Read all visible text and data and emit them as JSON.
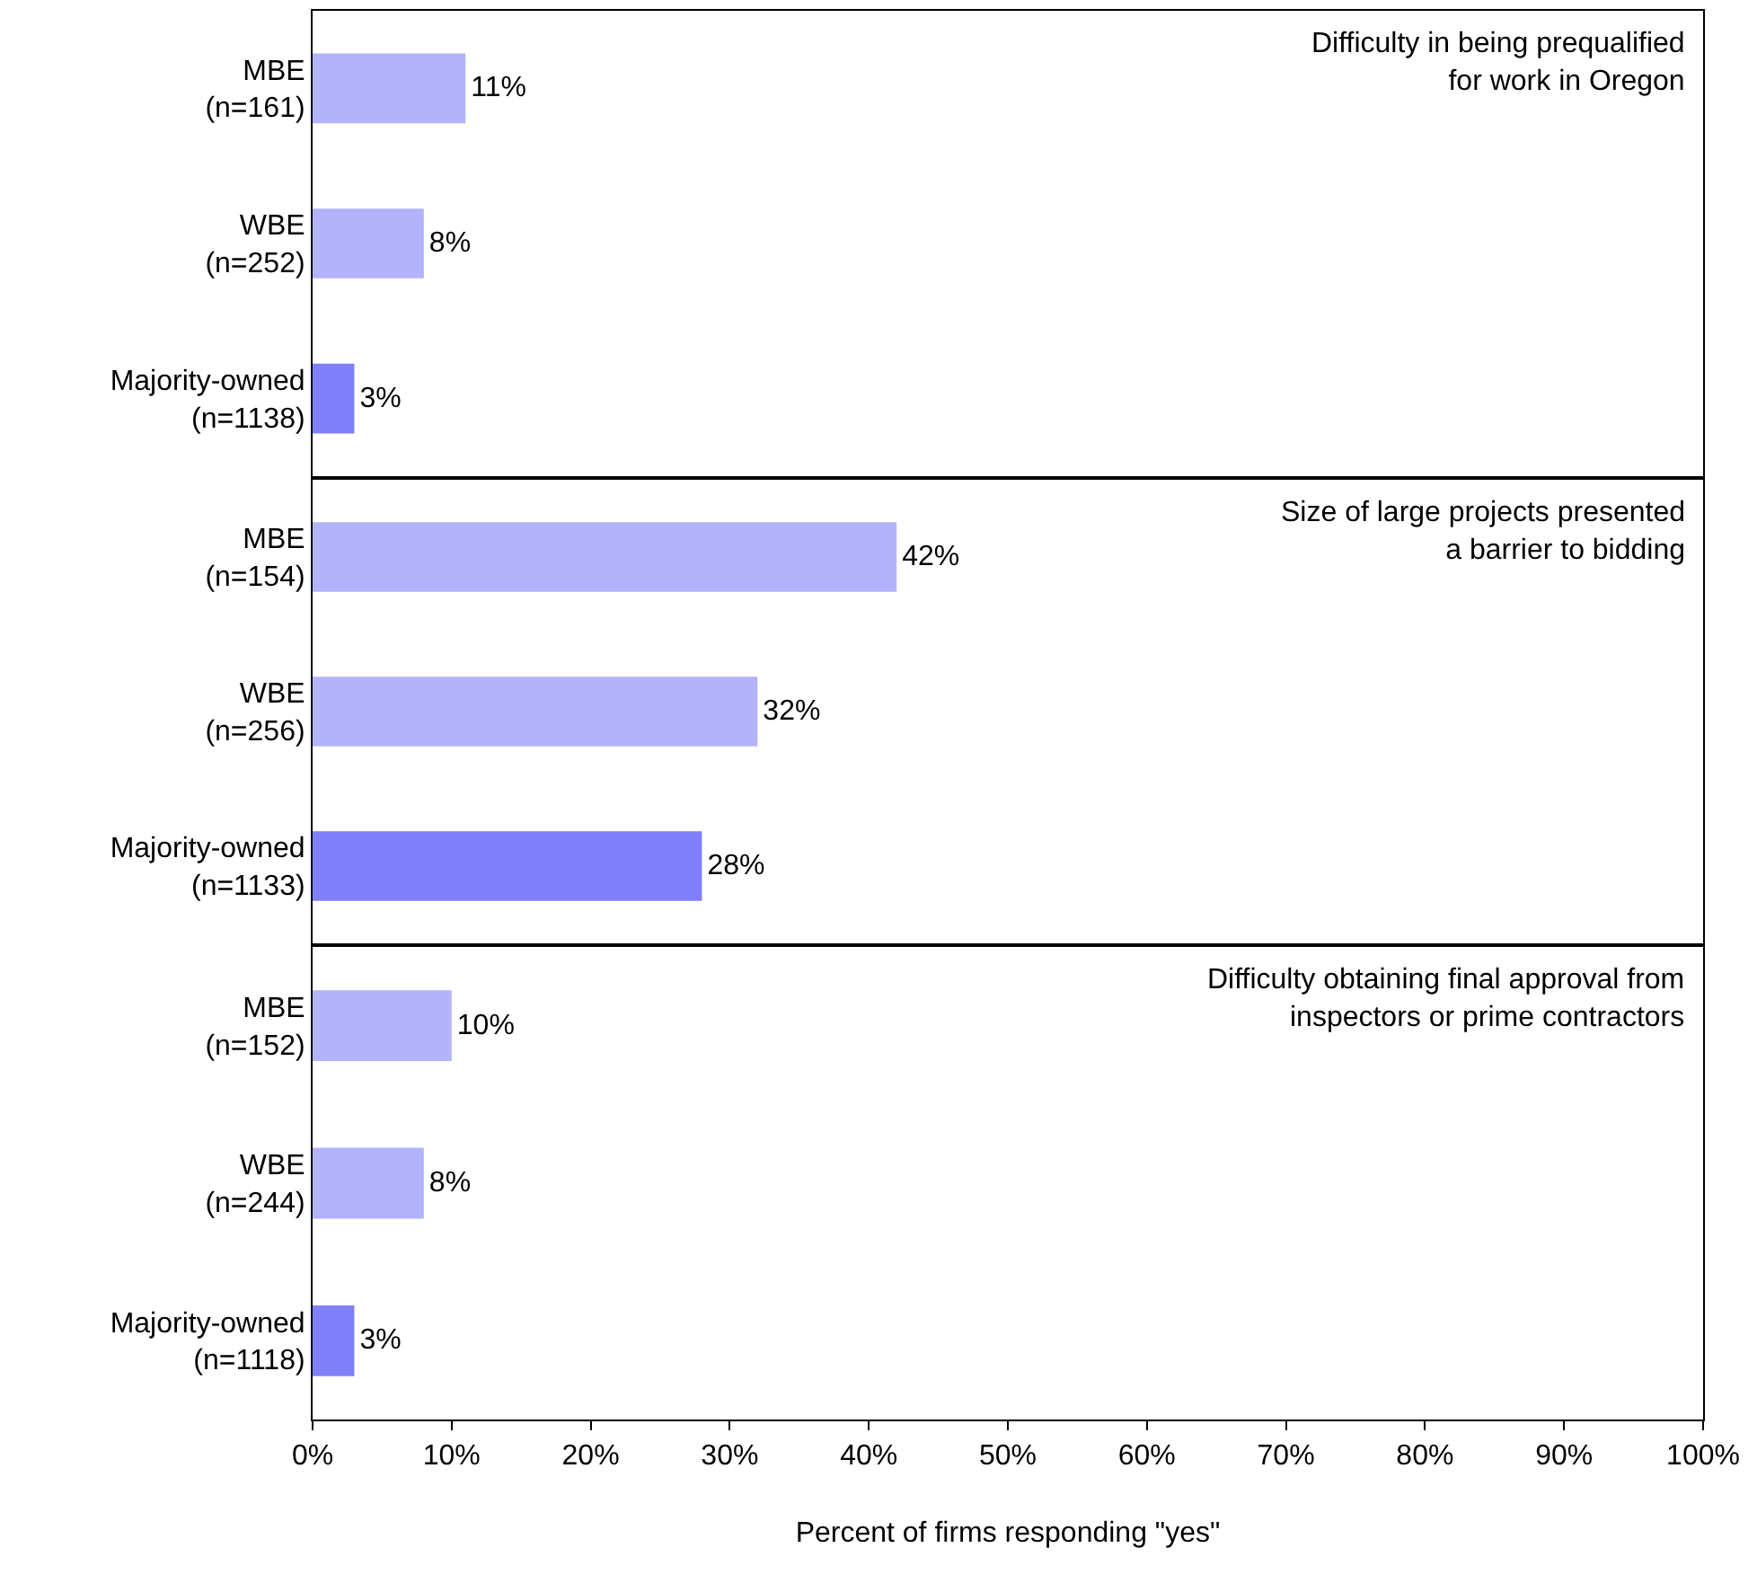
{
  "chart_data": [
    {
      "type": "bar",
      "orientation": "horizontal",
      "title": "Difficulty in being prequalified\nfor work in Oregon",
      "categories": [
        "MBE\n(n=161)",
        "WBE\n(n=252)",
        "Majority-owned\n(n=1138)"
      ],
      "values": [
        11,
        8,
        3
      ],
      "value_labels": [
        "11%",
        "8%",
        "3%"
      ],
      "colors": [
        "#b3b3fb",
        "#b3b3fb",
        "#8080fa"
      ],
      "xlim": [
        0,
        100
      ],
      "tick_labels": "y",
      "grid": false
    },
    {
      "type": "bar",
      "orientation": "horizontal",
      "title": "Size of large projects presented\na barrier to bidding",
      "categories": [
        "MBE\n(n=154)",
        "WBE\n(n=256)",
        "Majority-owned\n(n=1133)"
      ],
      "values": [
        42,
        32,
        28
      ],
      "value_labels": [
        "42%",
        "32%",
        "28%"
      ],
      "colors": [
        "#b3b3fb",
        "#b3b3fb",
        "#8080fa"
      ],
      "xlim": [
        0,
        100
      ],
      "tick_labels": "y",
      "grid": false
    },
    {
      "type": "bar",
      "orientation": "horizontal",
      "title": "Difficulty obtaining final approval from\ninspectors or prime contractors",
      "xlabel": "Percent of firms responding \"yes\"",
      "categories": [
        "MBE\n(n=152)",
        "WBE\n(n=244)",
        "Majority-owned\n(n=1118)"
      ],
      "values": [
        10,
        8,
        3
      ],
      "value_labels": [
        "10%",
        "8%",
        "3%"
      ],
      "colors": [
        "#b3b3fb",
        "#b3b3fb",
        "#8080fa"
      ],
      "xlim": [
        0,
        100
      ],
      "xticks": [
        {
          "value": 0,
          "label": "0%"
        },
        {
          "value": 10,
          "label": "10%"
        },
        {
          "value": 20,
          "label": "20%"
        },
        {
          "value": 30,
          "label": "30%"
        },
        {
          "value": 40,
          "label": "40%"
        },
        {
          "value": 50,
          "label": "50%"
        },
        {
          "value": 60,
          "label": "60%"
        },
        {
          "value": 70,
          "label": "70%"
        },
        {
          "value": 80,
          "label": "80%"
        },
        {
          "value": 90,
          "label": "90%"
        },
        {
          "value": 100,
          "label": "100%"
        }
      ],
      "grid": false
    }
  ]
}
